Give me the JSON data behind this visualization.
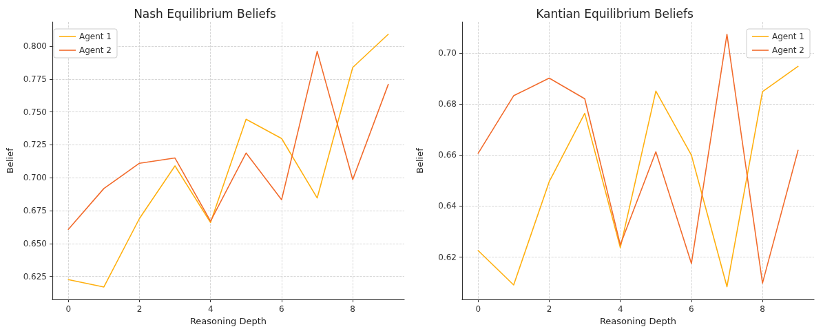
{
  "chart_data": [
    {
      "type": "line",
      "title": "Nash Equilibrium Beliefs",
      "xlabel": "Reasoning Depth",
      "ylabel": "Belief",
      "x": [
        0,
        1,
        2,
        3,
        4,
        5,
        6,
        7,
        8,
        9
      ],
      "series": [
        {
          "name": "Agent 1",
          "color": "#ffb00f",
          "values": [
            0.6226,
            0.617,
            0.669,
            0.709,
            0.666,
            0.7444,
            0.7298,
            0.6846,
            0.7838,
            0.809
          ]
        },
        {
          "name": "Agent 2",
          "color": "#f26b2c",
          "values": [
            0.6608,
            0.6918,
            0.711,
            0.715,
            0.667,
            0.7188,
            0.6833,
            0.796,
            0.6986,
            0.7709
          ]
        }
      ],
      "xlim": [
        -0.45,
        9.45
      ],
      "xticks": [
        0,
        2,
        4,
        6,
        8
      ],
      "ylim": [
        0.6075,
        0.8183
      ],
      "yticks": [
        0.625,
        {
          "value": 0.65,
          "label": "0.650"
        },
        0.675,
        {
          "value": 0.7,
          "label": "0.700"
        },
        0.725,
        {
          "value": 0.75,
          "label": "0.750"
        },
        0.775,
        {
          "value": 0.8,
          "label": "0.800"
        }
      ],
      "grid": true,
      "legend": "top left",
      "line_style": "solid",
      "marker": "none"
    },
    {
      "type": "line",
      "title": "Kantian Equilibrium Beliefs",
      "xlabel": "Reasoning Depth",
      "ylabel": "Belief",
      "x": [
        0,
        1,
        2,
        3,
        4,
        5,
        6,
        7,
        8,
        9
      ],
      "series": [
        {
          "name": "Agent 1",
          "color": "#ffb00f",
          "values": [
            0.6226,
            0.6091,
            0.6496,
            0.6764,
            0.6237,
            0.6851,
            0.66,
            0.6084,
            0.6849,
            0.6948
          ]
        },
        {
          "name": "Agent 2",
          "color": "#f26b2c",
          "values": [
            0.6607,
            0.6833,
            0.6902,
            0.6821,
            0.6248,
            0.6613,
            0.6175,
            0.7074,
            0.6098,
            0.6619
          ]
        }
      ],
      "xlim": [
        -0.45,
        9.45
      ],
      "xticks": [
        0,
        2,
        4,
        6,
        8
      ],
      "ylim": [
        0.6034,
        0.7122
      ],
      "yticks": [
        0.62,
        0.64,
        0.66,
        0.68,
        {
          "value": 0.7,
          "label": "0.70"
        }
      ],
      "grid": true,
      "legend": "top right",
      "line_style": "solid",
      "marker": "none"
    }
  ]
}
